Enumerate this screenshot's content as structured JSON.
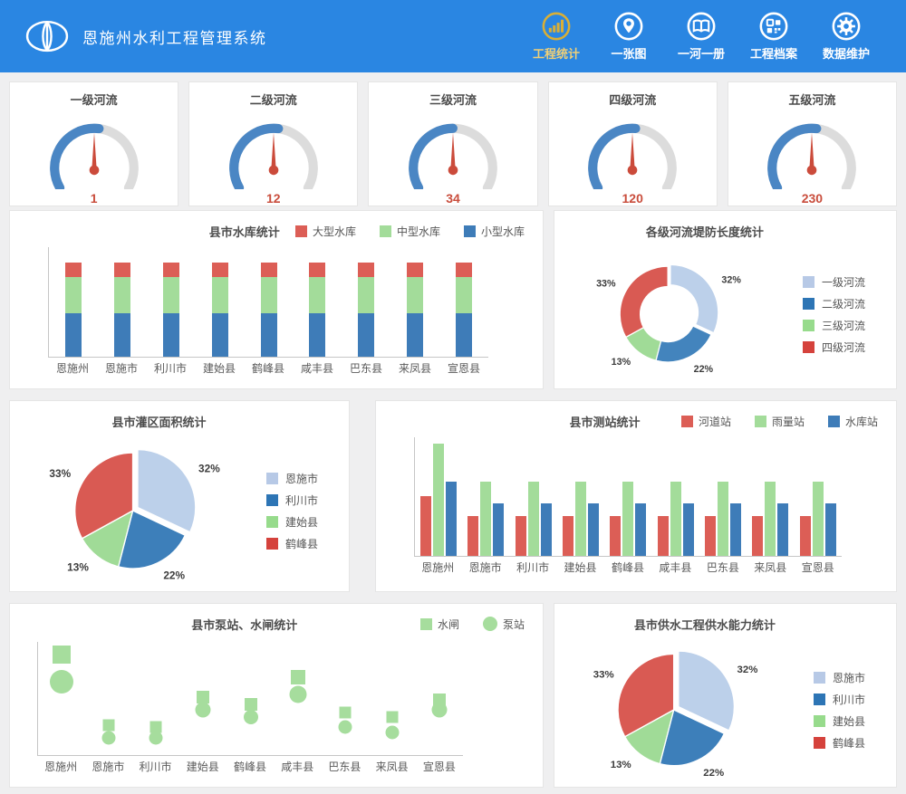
{
  "header": {
    "title": "恩施州水利工程管理系统",
    "nav": [
      {
        "label": "工程统计",
        "icon": "bar-chart-icon",
        "active": true
      },
      {
        "label": "一张图",
        "icon": "map-pin-icon",
        "active": false
      },
      {
        "label": "一河一册",
        "icon": "book-icon",
        "active": false
      },
      {
        "label": "工程档案",
        "icon": "archive-grid-icon",
        "active": false
      },
      {
        "label": "数据维护",
        "icon": "gear-icon",
        "active": false
      }
    ]
  },
  "colors": {
    "header_bg": "#2a86e2",
    "active_gold": "#d9af36",
    "active_label": "#f0d077",
    "gauge_fill": "#4a86c4",
    "gauge_track": "#dcdcdc",
    "gauge_needle": "#cb4b3b",
    "value_red": "#c94d3c",
    "page_bg": "#efeff0"
  },
  "chart_data": [
    {
      "type": "gauge",
      "title": "一级河流",
      "value": 1,
      "arc_fraction": 0.53
    },
    {
      "type": "gauge",
      "title": "二级河流",
      "value": 12,
      "arc_fraction": 0.53
    },
    {
      "type": "gauge",
      "title": "三级河流",
      "value": 34,
      "arc_fraction": 0.5
    },
    {
      "type": "gauge",
      "title": "四级河流",
      "value": 120,
      "arc_fraction": 0.52
    },
    {
      "type": "gauge",
      "title": "五级河流",
      "value": 230,
      "arc_fraction": 0.53
    },
    {
      "type": "bar",
      "variant": "stacked",
      "title": "县市水库统计",
      "categories": [
        "恩施州",
        "恩施市",
        "利川市",
        "建始县",
        "鹤峰县",
        "咸丰县",
        "巴东县",
        "来凤县",
        "宣恩县"
      ],
      "series": [
        {
          "name": "大型水库",
          "color": "#dc5e56",
          "values": [
            15,
            15,
            15,
            15,
            15,
            15,
            15,
            15,
            15
          ]
        },
        {
          "name": "中型水库",
          "color": "#a3dc9a",
          "values": [
            40,
            40,
            40,
            40,
            40,
            40,
            40,
            40,
            40
          ]
        },
        {
          "name": "小型水库",
          "color": "#3e7cb8",
          "values": [
            47,
            47,
            47,
            47,
            47,
            47,
            47,
            47,
            47
          ]
        }
      ],
      "ylim": [
        0,
        120
      ],
      "grid": false,
      "legend_position": "top-right"
    },
    {
      "type": "pie",
      "variant": "donut",
      "title": "各级河流堤防长度统计",
      "slices": [
        {
          "label": "一级河流",
          "value": 32,
          "pct_label": "32%",
          "color": "#bcd0ea",
          "offset": 4
        },
        {
          "label": "二级河流",
          "value": 22,
          "pct_label": "22%",
          "color": "#4384bd",
          "offset": 0
        },
        {
          "label": "三级河流",
          "value": 13,
          "pct_label": "13%",
          "color": "#a0db97",
          "offset": 0
        },
        {
          "label": "四级河流",
          "value": 33,
          "pct_label": "33%",
          "color": "#d95a53",
          "offset": 0
        }
      ],
      "legend": [
        {
          "label": "一级河流",
          "color": "#b7c9e6"
        },
        {
          "label": "二级河流",
          "color": "#2d75b5"
        },
        {
          "label": "三级河流",
          "color": "#97db8c"
        },
        {
          "label": "四级河流",
          "color": "#d5423c"
        }
      ],
      "legend_position": "right"
    },
    {
      "type": "pie",
      "title": "县市灌区面积统计",
      "slices": [
        {
          "label": "恩施市",
          "value": 32,
          "pct_label": "32%",
          "color": "#bcd0ea",
          "offset": 7
        },
        {
          "label": "利川市",
          "value": 22,
          "pct_label": "22%",
          "color": "#3d7fba",
          "offset": 0
        },
        {
          "label": "建始县",
          "value": 13,
          "pct_label": "13%",
          "color": "#a0db97",
          "offset": 0
        },
        {
          "label": "鹤峰县",
          "value": 33,
          "pct_label": "33%",
          "color": "#d95a53",
          "offset": 0
        }
      ],
      "legend": [
        {
          "label": "恩施市",
          "color": "#b7c9e6"
        },
        {
          "label": "利川市",
          "color": "#2d75b5"
        },
        {
          "label": "建始县",
          "color": "#97db8c"
        },
        {
          "label": "鹤峰县",
          "color": "#d5423c"
        }
      ],
      "legend_position": "right"
    },
    {
      "type": "bar",
      "variant": "grouped",
      "title": "县市测站统计",
      "categories": [
        "恩施州",
        "恩施市",
        "利川市",
        "建始县",
        "鹤峰县",
        "咸丰县",
        "巴东县",
        "来凤县",
        "宣恩县"
      ],
      "series": [
        {
          "name": "河道站",
          "color": "#dc5e56",
          "values": [
            24,
            16,
            16,
            16,
            16,
            16,
            16,
            16,
            16
          ]
        },
        {
          "name": "雨量站",
          "color": "#a3dc9a",
          "values": [
            45,
            30,
            30,
            30,
            30,
            30,
            30,
            30,
            30
          ]
        },
        {
          "name": "水库站",
          "color": "#3e7cb8",
          "values": [
            30,
            21,
            21,
            21,
            21,
            21,
            21,
            21,
            21
          ]
        }
      ],
      "ylim": [
        0,
        48
      ],
      "grid": false,
      "legend_position": "top-right"
    },
    {
      "type": "scatter",
      "title": "县市泵站、水闸统计",
      "categories": [
        "恩施州",
        "恩施市",
        "利川市",
        "建始县",
        "鹤峰县",
        "咸丰县",
        "巴东县",
        "来凤县",
        "宣恩县"
      ],
      "series": [
        {
          "name": "水闸",
          "marker": "square",
          "color": "#a6dd9d",
          "values": [
            40,
            12,
            11,
            23,
            20,
            31,
            17,
            15,
            22
          ],
          "sizes": [
            20,
            13,
            13,
            14,
            14,
            16,
            13,
            13,
            14
          ]
        },
        {
          "name": "泵站",
          "marker": "circle",
          "color": "#a6dd9d",
          "values": [
            29,
            7,
            7,
            18,
            15,
            24,
            11,
            9,
            18
          ],
          "sizes": [
            26,
            15,
            15,
            17,
            16,
            19,
            15,
            15,
            17
          ]
        }
      ],
      "ylim": [
        0,
        45
      ],
      "grid": false,
      "legend_position": "top-right"
    },
    {
      "type": "pie",
      "title": "县市供水工程供水能力统计",
      "slices": [
        {
          "label": "恩施市",
          "value": 32,
          "pct_label": "32%",
          "color": "#bcd0ea",
          "offset": 7
        },
        {
          "label": "利川市",
          "value": 22,
          "pct_label": "22%",
          "color": "#3d7fba",
          "offset": 0
        },
        {
          "label": "建始县",
          "value": 13,
          "pct_label": "13%",
          "color": "#a0db97",
          "offset": 0
        },
        {
          "label": "鹤峰县",
          "value": 33,
          "pct_label": "33%",
          "color": "#d95a53",
          "offset": 0
        }
      ],
      "legend": [
        {
          "label": "恩施市",
          "color": "#b7c9e6"
        },
        {
          "label": "利川市",
          "color": "#2d75b5"
        },
        {
          "label": "建始县",
          "color": "#97db8c"
        },
        {
          "label": "鹤峰县",
          "color": "#d5423c"
        }
      ],
      "legend_position": "right"
    }
  ]
}
